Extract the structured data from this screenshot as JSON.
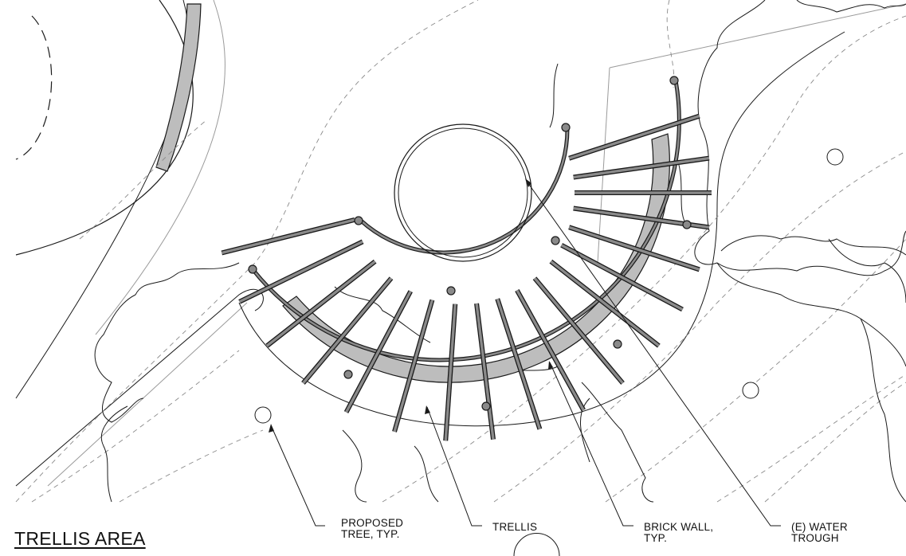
{
  "drawing": {
    "title": "TRELLIS AREA",
    "callouts": {
      "proposed_tree": [
        "PROPOSED",
        "TREE, TYP."
      ],
      "trellis": [
        "TRELLIS"
      ],
      "brick_wall": [
        "BRICK WALL,",
        "TYP."
      ],
      "water_trough": [
        "(E) WATER",
        "TROUGH"
      ]
    },
    "colors": {
      "linework": "#1a1a1a",
      "hatch_fill": "#bdbdbd",
      "trellis_fill": "#8a8a8a",
      "faint_line": "#9a9a9a"
    }
  }
}
